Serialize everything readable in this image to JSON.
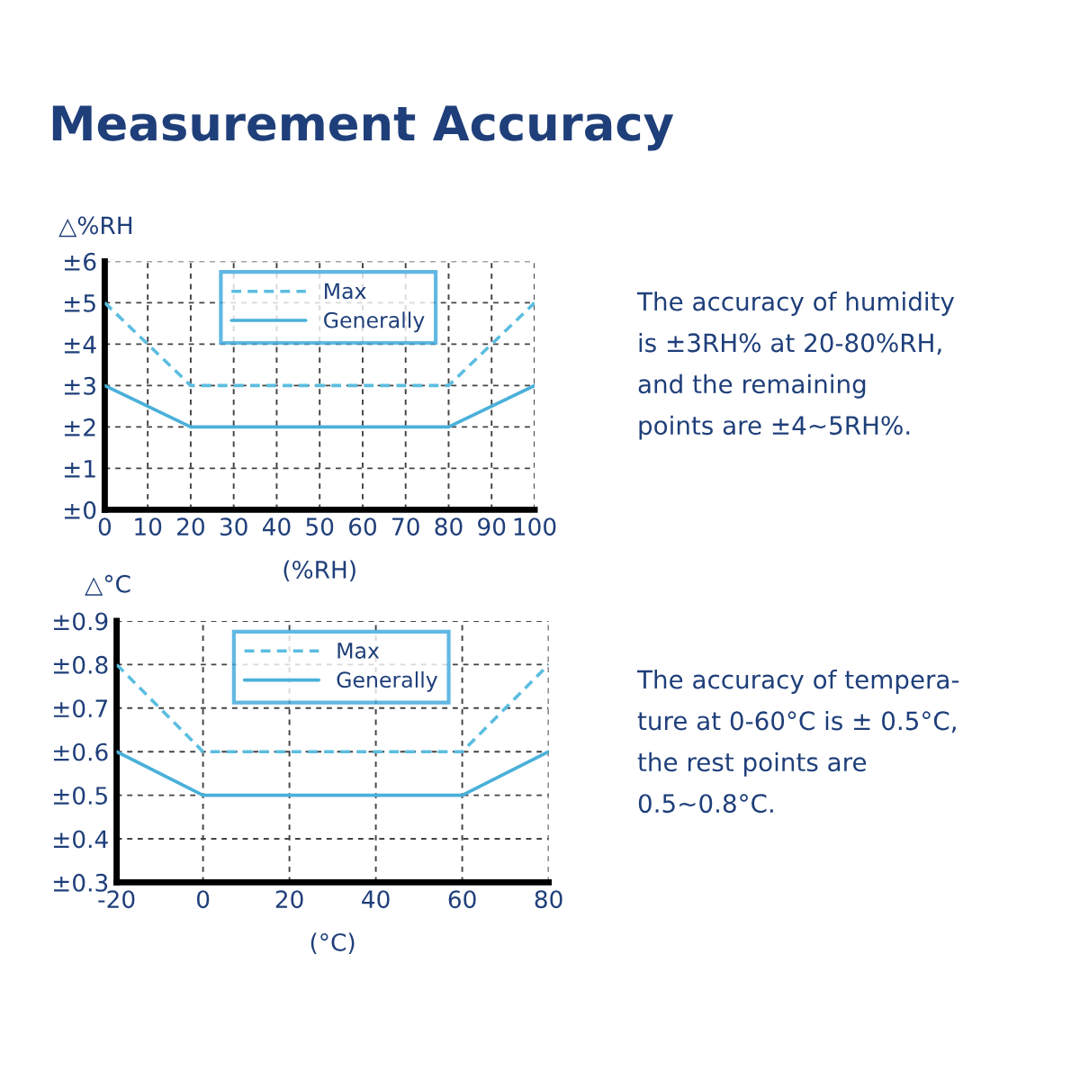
{
  "chart_data": [
    {
      "type": "line",
      "title": "Measurement Accuracy",
      "xlabel": "(%RH)",
      "ylabel": "△%RH",
      "xlim": [
        0,
        100
      ],
      "xticks": [
        0,
        10,
        20,
        30,
        40,
        50,
        60,
        70,
        80,
        90,
        100
      ],
      "ylim": [
        0,
        6
      ],
      "yticks": [
        {
          "value": 0,
          "label": "±0"
        },
        {
          "value": 1,
          "label": "±1"
        },
        {
          "value": 2,
          "label": "±2"
        },
        {
          "value": 3,
          "label": "±3"
        },
        {
          "value": 4,
          "label": "±4"
        },
        {
          "value": 5,
          "label": "±5"
        },
        {
          "value": 6,
          "label": "±6"
        }
      ],
      "grid": true,
      "legend": "top",
      "series": [
        {
          "name": "Max",
          "color": "#5bbde0",
          "line_style": "dashed",
          "x": [
            0,
            20,
            80,
            100
          ],
          "values": [
            5,
            3,
            3,
            5
          ]
        },
        {
          "name": "Generally",
          "color": "#4ab0d9",
          "line_style": "solid",
          "x": [
            0,
            20,
            80,
            100
          ],
          "values": [
            3,
            2,
            2,
            3
          ]
        }
      ],
      "annotations": [
        "The accuracy of humidity\nis ±3RH% at 20-80%RH,\nand the remaining\npoints are ±4~5RH%."
      ]
    },
    {
      "type": "line",
      "xlabel": "(°C)",
      "ylabel": "△°C",
      "xlim": [
        -20,
        80
      ],
      "xticks": [
        -20,
        0,
        20,
        40,
        60,
        80
      ],
      "ylim": [
        0.3,
        0.9
      ],
      "yticks": [
        {
          "value": 0.3,
          "label": "±0.3"
        },
        {
          "value": 0.4,
          "label": "±0.4"
        },
        {
          "value": 0.5,
          "label": "±0.5"
        },
        {
          "value": 0.6,
          "label": "±0.6"
        },
        {
          "value": 0.7,
          "label": "±0.7"
        },
        {
          "value": 0.8,
          "label": "±0.8"
        },
        {
          "value": 0.9,
          "label": "±0.9"
        }
      ],
      "grid": true,
      "legend": "top",
      "series": [
        {
          "name": "Max",
          "color": "#5bbde0",
          "line_style": "dashed",
          "x": [
            -20,
            0,
            60,
            80
          ],
          "values": [
            0.8,
            0.6,
            0.6,
            0.8
          ]
        },
        {
          "name": "Generally",
          "color": "#4ab0d9",
          "line_style": "solid",
          "x": [
            -20,
            0,
            60,
            80
          ],
          "values": [
            0.6,
            0.5,
            0.5,
            0.6
          ]
        }
      ],
      "annotations": [
        "The accuracy of tempera-\nture at 0-60°C is ± 0.5°C,\nthe rest points are\n0.5~0.8°C."
      ]
    }
  ]
}
